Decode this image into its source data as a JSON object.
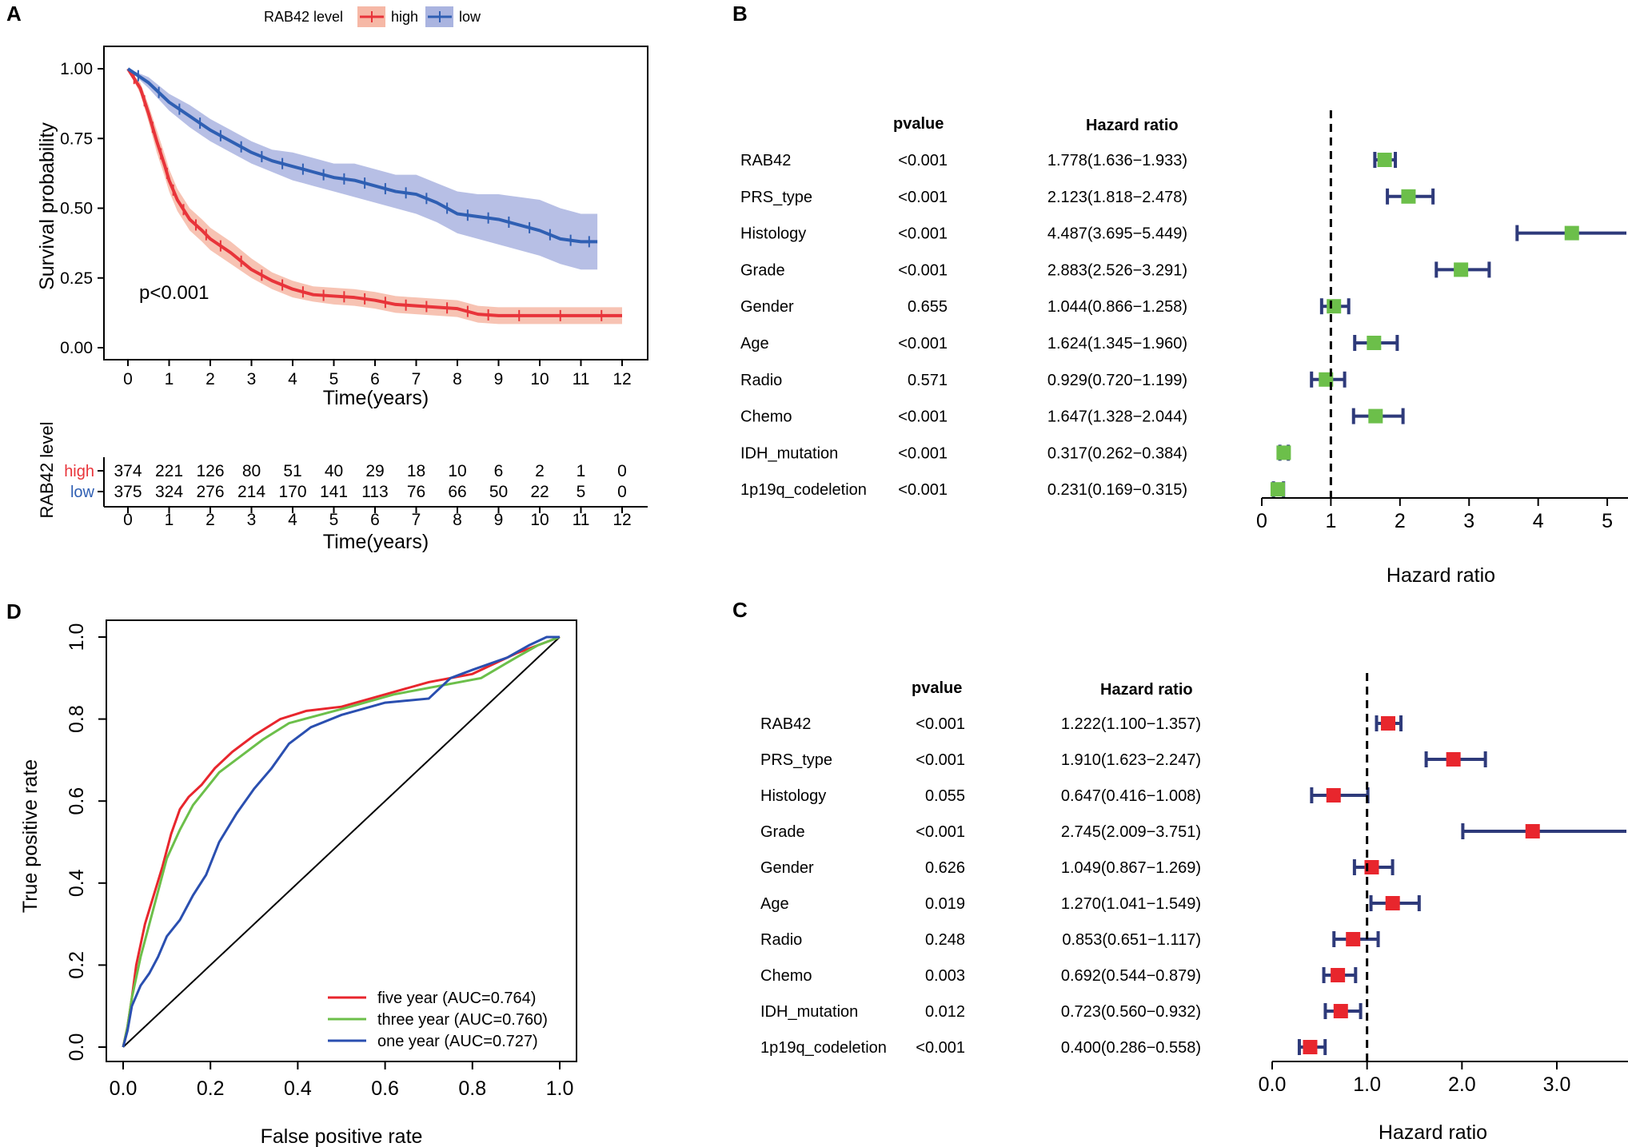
{
  "panel_letters": {
    "A": "A",
    "B": "B",
    "C": "C",
    "D": "D"
  },
  "chart_data": [
    {
      "id": "A",
      "type": "line",
      "title": "",
      "legend_title": "RAB42 level",
      "legend_placement": "top",
      "legend_labels": [
        "high",
        "low"
      ],
      "xlabel": "Time(years)",
      "ylabel": "Survival probability",
      "xlim": [
        0,
        12
      ],
      "ylim": [
        0,
        1
      ],
      "xticks": [
        "0",
        "1",
        "2",
        "3",
        "4",
        "5",
        "6",
        "7",
        "8",
        "9",
        "10",
        "11",
        "12"
      ],
      "yticks": [
        "0.00",
        "0.25",
        "0.50",
        "0.75",
        "1.00"
      ],
      "annotation": "p<0.001",
      "colors": {
        "high": "#e8343a",
        "low": "#2f5fb3",
        "high_band": "#f6b8a6",
        "low_band": "#aab4e0"
      },
      "series": [
        {
          "name": "high",
          "x": [
            0,
            0.3,
            0.5,
            0.7,
            0.9,
            1,
            1.2,
            1.5,
            1.8,
            2,
            2.5,
            3,
            3.5,
            4,
            4.5,
            5,
            5.5,
            6,
            6.5,
            7,
            7.5,
            8,
            8.5,
            9,
            10,
            11,
            12
          ],
          "y": [
            1,
            0.93,
            0.84,
            0.74,
            0.65,
            0.6,
            0.53,
            0.46,
            0.42,
            0.39,
            0.34,
            0.28,
            0.24,
            0.21,
            0.19,
            0.185,
            0.18,
            0.17,
            0.155,
            0.15,
            0.145,
            0.14,
            0.12,
            0.115,
            0.115,
            0.115,
            0.115
          ],
          "lower": [
            1,
            0.91,
            0.81,
            0.7,
            0.61,
            0.56,
            0.49,
            0.42,
            0.38,
            0.35,
            0.3,
            0.25,
            0.21,
            0.18,
            0.165,
            0.155,
            0.15,
            0.14,
            0.125,
            0.12,
            0.115,
            0.11,
            0.09,
            0.085,
            0.085,
            0.085,
            0.085
          ],
          "upper": [
            1,
            0.95,
            0.87,
            0.78,
            0.69,
            0.64,
            0.57,
            0.5,
            0.46,
            0.43,
            0.38,
            0.32,
            0.27,
            0.24,
            0.22,
            0.215,
            0.21,
            0.2,
            0.185,
            0.18,
            0.175,
            0.17,
            0.15,
            0.145,
            0.145,
            0.145,
            0.145
          ]
        },
        {
          "name": "low",
          "x": [
            0,
            0.5,
            1,
            1.5,
            2,
            2.5,
            3,
            3.5,
            4,
            4.5,
            5,
            5.5,
            6,
            6.5,
            7,
            7.5,
            8,
            8.5,
            9,
            9.5,
            10,
            10.5,
            11,
            11.4
          ],
          "y": [
            1,
            0.95,
            0.88,
            0.83,
            0.78,
            0.74,
            0.7,
            0.67,
            0.65,
            0.63,
            0.61,
            0.6,
            0.58,
            0.56,
            0.55,
            0.52,
            0.48,
            0.47,
            0.46,
            0.44,
            0.42,
            0.39,
            0.38,
            0.38
          ],
          "lower": [
            1,
            0.93,
            0.85,
            0.79,
            0.74,
            0.7,
            0.66,
            0.63,
            0.6,
            0.58,
            0.56,
            0.54,
            0.52,
            0.5,
            0.48,
            0.45,
            0.41,
            0.39,
            0.37,
            0.35,
            0.33,
            0.3,
            0.28,
            0.28
          ],
          "upper": [
            1,
            0.97,
            0.91,
            0.87,
            0.82,
            0.78,
            0.74,
            0.71,
            0.7,
            0.68,
            0.66,
            0.66,
            0.64,
            0.62,
            0.62,
            0.59,
            0.56,
            0.55,
            0.55,
            0.54,
            0.53,
            0.5,
            0.48,
            0.48
          ]
        }
      ],
      "risk_table": {
        "ylabel": "RAB42 level",
        "xlabel": "Time(years)",
        "rows": [
          {
            "label": "high",
            "values": [
              "374",
              "221",
              "126",
              "80",
              "51",
              "40",
              "29",
              "18",
              "10",
              "6",
              "2",
              "1",
              "0"
            ]
          },
          {
            "label": "low",
            "values": [
              "375",
              "324",
              "276",
              "214",
              "170",
              "141",
              "113",
              "76",
              "66",
              "50",
              "22",
              "5",
              "0"
            ]
          }
        ]
      }
    },
    {
      "id": "B",
      "type": "forest",
      "xlabel": "Hazard ratio",
      "xlim": [
        0,
        5.3
      ],
      "xticks": [
        "0",
        "1",
        "2",
        "3",
        "4",
        "5"
      ],
      "reference_line": 1,
      "col_pvalue": "pvalue",
      "col_hr": "Hazard ratio",
      "marker_color": "#6cbf4a",
      "ci_color": "#2e3a7a",
      "rows": [
        {
          "name": "RAB42",
          "pvalue": "<0.001",
          "hr_text": "1.778(1.636−1.933)",
          "hr": 1.778,
          "lo": 1.636,
          "hi": 1.933
        },
        {
          "name": "PRS_type",
          "pvalue": "<0.001",
          "hr_text": "2.123(1.818−2.478)",
          "hr": 2.123,
          "lo": 1.818,
          "hi": 2.478
        },
        {
          "name": "Histology",
          "pvalue": "<0.001",
          "hr_text": "4.487(3.695−5.449)",
          "hr": 4.487,
          "lo": 3.695,
          "hi": 5.449
        },
        {
          "name": "Grade",
          "pvalue": "<0.001",
          "hr_text": "2.883(2.526−3.291)",
          "hr": 2.883,
          "lo": 2.526,
          "hi": 3.291
        },
        {
          "name": "Gender",
          "pvalue": "0.655",
          "hr_text": "1.044(0.866−1.258)",
          "hr": 1.044,
          "lo": 0.866,
          "hi": 1.258
        },
        {
          "name": "Age",
          "pvalue": "<0.001",
          "hr_text": "1.624(1.345−1.960)",
          "hr": 1.624,
          "lo": 1.345,
          "hi": 1.96
        },
        {
          "name": "Radio",
          "pvalue": "0.571",
          "hr_text": "0.929(0.720−1.199)",
          "hr": 0.929,
          "lo": 0.72,
          "hi": 1.199
        },
        {
          "name": "Chemo",
          "pvalue": "<0.001",
          "hr_text": "1.647(1.328−2.044)",
          "hr": 1.647,
          "lo": 1.328,
          "hi": 2.044
        },
        {
          "name": "IDH_mutation",
          "pvalue": "<0.001",
          "hr_text": "0.317(0.262−0.384)",
          "hr": 0.317,
          "lo": 0.262,
          "hi": 0.384
        },
        {
          "name": "1p19q_codeletion",
          "pvalue": "<0.001",
          "hr_text": "0.231(0.169−0.315)",
          "hr": 0.231,
          "lo": 0.169,
          "hi": 0.315
        }
      ]
    },
    {
      "id": "C",
      "type": "forest",
      "xlabel": "Hazard ratio",
      "xlim": [
        0,
        3.75
      ],
      "xticks": [
        "0.0",
        "1.0",
        "2.0",
        "3.0"
      ],
      "reference_line": 1,
      "col_pvalue": "pvalue",
      "col_hr": "Hazard ratio",
      "marker_color": "#e8262d",
      "ci_color": "#2e3a7a",
      "rows": [
        {
          "name": "RAB42",
          "pvalue": "<0.001",
          "hr_text": "1.222(1.100−1.357)",
          "hr": 1.222,
          "lo": 1.1,
          "hi": 1.357
        },
        {
          "name": "PRS_type",
          "pvalue": "<0.001",
          "hr_text": "1.910(1.623−2.247)",
          "hr": 1.91,
          "lo": 1.623,
          "hi": 2.247
        },
        {
          "name": "Histology",
          "pvalue": "0.055",
          "hr_text": "0.647(0.416−1.008)",
          "hr": 0.647,
          "lo": 0.416,
          "hi": 1.008
        },
        {
          "name": "Grade",
          "pvalue": "<0.001",
          "hr_text": "2.745(2.009−3.751)",
          "hr": 2.745,
          "lo": 2.009,
          "hi": 3.751
        },
        {
          "name": "Gender",
          "pvalue": "0.626",
          "hr_text": "1.049(0.867−1.269)",
          "hr": 1.049,
          "lo": 0.867,
          "hi": 1.269
        },
        {
          "name": "Age",
          "pvalue": "0.019",
          "hr_text": "1.270(1.041−1.549)",
          "hr": 1.27,
          "lo": 1.041,
          "hi": 1.549
        },
        {
          "name": "Radio",
          "pvalue": "0.248",
          "hr_text": "0.853(0.651−1.117)",
          "hr": 0.853,
          "lo": 0.651,
          "hi": 1.117
        },
        {
          "name": "Chemo",
          "pvalue": "0.003",
          "hr_text": "0.692(0.544−0.879)",
          "hr": 0.692,
          "lo": 0.544,
          "hi": 0.879
        },
        {
          "name": "IDH_mutation",
          "pvalue": "0.012",
          "hr_text": "0.723(0.560−0.932)",
          "hr": 0.723,
          "lo": 0.56,
          "hi": 0.932
        },
        {
          "name": "1p19q_codeletion",
          "pvalue": "<0.001",
          "hr_text": "0.400(0.286−0.558)",
          "hr": 0.4,
          "lo": 0.286,
          "hi": 0.558
        }
      ]
    },
    {
      "id": "D",
      "type": "line",
      "title": "",
      "xlabel": "False positive rate",
      "ylabel": "True positive rate",
      "xlim": [
        0,
        1
      ],
      "ylim": [
        0,
        1
      ],
      "xticks": [
        "0.0",
        "0.2",
        "0.4",
        "0.6",
        "0.8",
        "1.0"
      ],
      "yticks": [
        "0.0",
        "0.2",
        "0.4",
        "0.6",
        "0.8",
        "1.0"
      ],
      "legend_placement": "bottom-right",
      "series": [
        {
          "name": "five year",
          "legend": "five year (AUC=0.764)",
          "color": "#e8262d",
          "x": [
            0,
            0.01,
            0.02,
            0.03,
            0.05,
            0.07,
            0.09,
            0.11,
            0.13,
            0.15,
            0.18,
            0.21,
            0.25,
            0.3,
            0.36,
            0.42,
            0.5,
            0.6,
            0.7,
            0.8,
            0.9,
            0.95,
            1.0
          ],
          "y": [
            0,
            0.05,
            0.12,
            0.2,
            0.3,
            0.37,
            0.44,
            0.52,
            0.58,
            0.61,
            0.64,
            0.68,
            0.72,
            0.76,
            0.8,
            0.82,
            0.83,
            0.86,
            0.89,
            0.91,
            0.96,
            0.98,
            1.0
          ]
        },
        {
          "name": "three year",
          "legend": "three year (AUC=0.760)",
          "color": "#6cbf4a",
          "x": [
            0,
            0.01,
            0.02,
            0.04,
            0.06,
            0.08,
            0.1,
            0.13,
            0.16,
            0.19,
            0.22,
            0.27,
            0.32,
            0.38,
            0.45,
            0.52,
            0.62,
            0.72,
            0.82,
            0.9,
            0.95,
            1.0
          ],
          "y": [
            0,
            0.05,
            0.12,
            0.22,
            0.3,
            0.38,
            0.46,
            0.53,
            0.59,
            0.63,
            0.67,
            0.71,
            0.75,
            0.79,
            0.81,
            0.83,
            0.86,
            0.88,
            0.9,
            0.95,
            0.98,
            1.0
          ]
        },
        {
          "name": "one year",
          "legend": "one year (AUC=0.727)",
          "color": "#2a4fb0",
          "x": [
            0,
            0.01,
            0.02,
            0.04,
            0.06,
            0.08,
            0.1,
            0.13,
            0.16,
            0.19,
            0.22,
            0.26,
            0.3,
            0.34,
            0.38,
            0.43,
            0.5,
            0.6,
            0.7,
            0.75,
            0.8,
            0.88,
            0.93,
            0.97,
            1.0
          ],
          "y": [
            0,
            0.04,
            0.1,
            0.15,
            0.18,
            0.22,
            0.27,
            0.31,
            0.37,
            0.42,
            0.5,
            0.57,
            0.63,
            0.68,
            0.74,
            0.78,
            0.81,
            0.84,
            0.85,
            0.9,
            0.92,
            0.95,
            0.98,
            1.0,
            1.0
          ]
        }
      ]
    }
  ]
}
